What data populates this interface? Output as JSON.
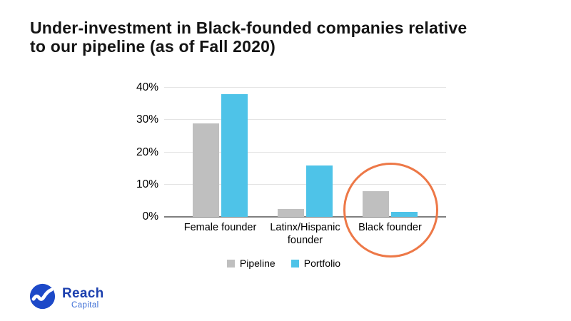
{
  "title": {
    "line1": "Under-investment in Black-founded companies relative",
    "line2": "to our pipeline (as of Fall 2020)"
  },
  "colors": {
    "pipeline": "#bfbfbf",
    "portfolio": "#4ec3e8",
    "annotation": "#ed7847",
    "gridline": "#e4e4e4",
    "baseline": "#7f7f7f",
    "logo_circle": "#1d49c8",
    "logo_name_text": "#1b3fae",
    "logo_subname_text": "#3e6fd6"
  },
  "chart_data": {
    "type": "bar",
    "categories": [
      "Female founder",
      "Latinx/Hispanic founder",
      "Black founder"
    ],
    "series": [
      {
        "name": "Pipeline",
        "color": "#bfbfbf",
        "values": [
          29,
          2.5,
          8
        ]
      },
      {
        "name": "Portfolio",
        "color": "#4ec3e8",
        "values": [
          38,
          16,
          1.5
        ]
      }
    ],
    "title": "Under-investment in Black-founded companies relative to our pipeline (as of Fall 2020)",
    "xlabel": "",
    "ylabel": "",
    "ylim": [
      0,
      40
    ],
    "yticks": [
      {
        "value": 0,
        "label": "0%"
      },
      {
        "value": 10,
        "label": "10%"
      },
      {
        "value": 20,
        "label": "20%"
      },
      {
        "value": 30,
        "label": "30%"
      },
      {
        "value": 40,
        "label": "40%"
      }
    ],
    "grid": true,
    "legend_position": "bottom",
    "annotation": {
      "shape": "circle",
      "target_category": "Black founder",
      "color": "#ed7847"
    }
  },
  "logo": {
    "name": "Reach",
    "subname": "Capital"
  }
}
